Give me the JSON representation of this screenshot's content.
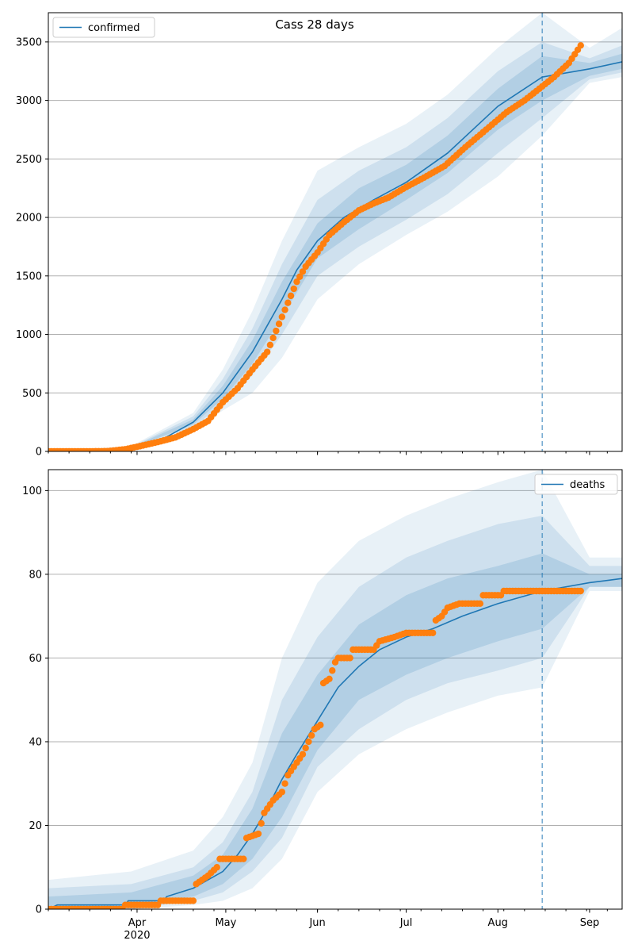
{
  "chart_data": [
    {
      "type": "line",
      "title": "Cass 28 days",
      "legend": {
        "label": "confirmed",
        "placement": "top-left"
      },
      "ylim": [
        0,
        3750
      ],
      "yticks": [
        0,
        500,
        1000,
        1500,
        2000,
        2500,
        3000,
        3500
      ],
      "grid": "y",
      "forecast_start": "2020-08-16",
      "xlim": [
        "2020-03-02",
        "2020-09-12"
      ],
      "model_line": [
        [
          "2020-03-02",
          0
        ],
        [
          "2020-03-20",
          5
        ],
        [
          "2020-03-30",
          30
        ],
        [
          "2020-04-10",
          110
        ],
        [
          "2020-04-20",
          250
        ],
        [
          "2020-04-30",
          500
        ],
        [
          "2020-05-10",
          850
        ],
        [
          "2020-05-20",
          1300
        ],
        [
          "2020-05-25",
          1550
        ],
        [
          "2020-06-01",
          1800
        ],
        [
          "2020-06-10",
          2000
        ],
        [
          "2020-06-20",
          2150
        ],
        [
          "2020-07-01",
          2300
        ],
        [
          "2020-07-15",
          2550
        ],
        [
          "2020-08-01",
          2950
        ],
        [
          "2020-08-16",
          3200
        ],
        [
          "2020-09-01",
          3270
        ],
        [
          "2020-09-12",
          3330
        ]
      ],
      "bands": [
        {
          "opacity": 0.1,
          "points": [
            [
              "2020-03-02",
              0,
              0
            ],
            [
              "2020-03-30",
              20,
              45
            ],
            [
              "2020-04-20",
              180,
              330
            ],
            [
              "2020-04-30",
              350,
              700
            ],
            [
              "2020-05-10",
              500,
              1200
            ],
            [
              "2020-05-20",
              800,
              1800
            ],
            [
              "2020-06-01",
              1300,
              2400
            ],
            [
              "2020-06-15",
              1600,
              2600
            ],
            [
              "2020-07-01",
              1850,
              2800
            ],
            [
              "2020-07-15",
              2050,
              3050
            ],
            [
              "2020-08-01",
              2350,
              3450
            ],
            [
              "2020-08-16",
              2700,
              3750
            ],
            [
              "2020-09-01",
              3150,
              3450
            ],
            [
              "2020-09-12",
              3200,
              3620
            ]
          ]
        },
        {
          "opacity": 0.13,
          "points": [
            [
              "2020-03-02",
              0,
              0
            ],
            [
              "2020-03-30",
              24,
              38
            ],
            [
              "2020-04-20",
              210,
              300
            ],
            [
              "2020-04-30",
              400,
              620
            ],
            [
              "2020-05-10",
              650,
              1050
            ],
            [
              "2020-05-20",
              1000,
              1600
            ],
            [
              "2020-06-01",
              1500,
              2150
            ],
            [
              "2020-06-15",
              1750,
              2400
            ],
            [
              "2020-07-01",
              1980,
              2600
            ],
            [
              "2020-07-15",
              2200,
              2850
            ],
            [
              "2020-08-01",
              2550,
              3250
            ],
            [
              "2020-08-16",
              2850,
              3500
            ],
            [
              "2020-09-01",
              3180,
              3360
            ],
            [
              "2020-09-12",
              3240,
              3470
            ]
          ]
        },
        {
          "opacity": 0.16,
          "points": [
            [
              "2020-03-02",
              0,
              0
            ],
            [
              "2020-03-30",
              27,
              34
            ],
            [
              "2020-04-20",
              230,
              275
            ],
            [
              "2020-04-30",
              450,
              560
            ],
            [
              "2020-05-10",
              750,
              950
            ],
            [
              "2020-05-20",
              1150,
              1450
            ],
            [
              "2020-06-01",
              1650,
              1950
            ],
            [
              "2020-06-15",
              1900,
              2250
            ],
            [
              "2020-07-01",
              2150,
              2450
            ],
            [
              "2020-07-15",
              2380,
              2700
            ],
            [
              "2020-08-01",
              2750,
              3100
            ],
            [
              "2020-08-16",
              3000,
              3380
            ],
            [
              "2020-09-01",
              3210,
              3320
            ],
            [
              "2020-09-12",
              3270,
              3400
            ]
          ]
        }
      ],
      "observed": [
        [
          "2020-03-02",
          0
        ],
        [
          "2020-03-14",
          0
        ],
        [
          "2020-03-22",
          2
        ],
        [
          "2020-03-28",
          18
        ],
        [
          "2020-04-02",
          45
        ],
        [
          "2020-04-08",
          80
        ],
        [
          "2020-04-14",
          120
        ],
        [
          "2020-04-20",
          190
        ],
        [
          "2020-04-25",
          260
        ],
        [
          "2020-04-30",
          420
        ],
        [
          "2020-05-05",
          540
        ],
        [
          "2020-05-10",
          700
        ],
        [
          "2020-05-15",
          850
        ],
        [
          "2020-05-20",
          1150
        ],
        [
          "2020-05-25",
          1450
        ],
        [
          "2020-05-28",
          1580
        ],
        [
          "2020-06-01",
          1700
        ],
        [
          "2020-06-05",
          1850
        ],
        [
          "2020-06-10",
          1960
        ],
        [
          "2020-06-15",
          2060
        ],
        [
          "2020-06-20",
          2120
        ],
        [
          "2020-06-25",
          2170
        ],
        [
          "2020-07-01",
          2260
        ],
        [
          "2020-07-07",
          2340
        ],
        [
          "2020-07-14",
          2440
        ],
        [
          "2020-07-21",
          2600
        ],
        [
          "2020-07-28",
          2750
        ],
        [
          "2020-08-04",
          2900
        ],
        [
          "2020-08-10",
          3000
        ],
        [
          "2020-08-16",
          3120
        ],
        [
          "2020-08-20",
          3200
        ],
        [
          "2020-08-25",
          3320
        ],
        [
          "2020-08-29",
          3470
        ]
      ]
    },
    {
      "type": "line",
      "legend": {
        "label": "deaths",
        "placement": "top-right"
      },
      "ylim": [
        0,
        105
      ],
      "yticks": [
        0,
        20,
        40,
        60,
        80,
        100
      ],
      "grid": "y",
      "forecast_start": "2020-08-16",
      "xlim": [
        "2020-03-02",
        "2020-09-12"
      ],
      "xticks": [
        {
          "date": "2020-04-01",
          "label": "Apr",
          "sublabel": "2020"
        },
        {
          "date": "2020-05-01",
          "label": "May"
        },
        {
          "date": "2020-06-01",
          "label": "Jun"
        },
        {
          "date": "2020-07-01",
          "label": "Jul"
        },
        {
          "date": "2020-08-01",
          "label": "Aug"
        },
        {
          "date": "2020-09-01",
          "label": "Sep"
        }
      ],
      "model_line": [
        [
          "2020-03-02",
          0
        ],
        [
          "2020-03-05",
          1
        ],
        [
          "2020-03-28",
          1
        ],
        [
          "2020-03-29",
          2
        ],
        [
          "2020-04-10",
          2
        ],
        [
          "2020-04-11",
          3
        ],
        [
          "2020-04-20",
          5
        ],
        [
          "2020-04-30",
          9
        ],
        [
          "2020-05-05",
          13
        ],
        [
          "2020-05-10",
          18
        ],
        [
          "2020-05-15",
          24
        ],
        [
          "2020-05-20",
          31
        ],
        [
          "2020-05-25",
          37
        ],
        [
          "2020-06-01",
          45
        ],
        [
          "2020-06-08",
          53
        ],
        [
          "2020-06-15",
          58
        ],
        [
          "2020-06-22",
          62
        ],
        [
          "2020-07-01",
          65
        ],
        [
          "2020-07-10",
          67
        ],
        [
          "2020-07-20",
          70
        ],
        [
          "2020-08-01",
          73
        ],
        [
          "2020-08-16",
          76
        ],
        [
          "2020-09-01",
          78
        ],
        [
          "2020-09-12",
          79
        ]
      ],
      "bands": [
        {
          "opacity": 0.1,
          "points": [
            [
              "2020-03-02",
              0,
              7
            ],
            [
              "2020-03-30",
              0,
              9
            ],
            [
              "2020-04-20",
              1,
              14
            ],
            [
              "2020-04-30",
              2,
              22
            ],
            [
              "2020-05-10",
              5,
              35
            ],
            [
              "2020-05-20",
              12,
              60
            ],
            [
              "2020-06-01",
              28,
              78
            ],
            [
              "2020-06-15",
              37,
              88
            ],
            [
              "2020-07-01",
              43,
              94
            ],
            [
              "2020-07-15",
              47,
              98
            ],
            [
              "2020-08-01",
              51,
              102
            ],
            [
              "2020-08-16",
              53,
              105
            ],
            [
              "2020-09-01",
              76,
              84
            ],
            [
              "2020-09-12",
              76,
              84
            ]
          ]
        },
        {
          "opacity": 0.13,
          "points": [
            [
              "2020-03-02",
              0,
              5
            ],
            [
              "2020-03-30",
              0,
              6
            ],
            [
              "2020-04-20",
              2,
              10
            ],
            [
              "2020-04-30",
              4,
              16
            ],
            [
              "2020-05-10",
              9,
              28
            ],
            [
              "2020-05-20",
              17,
              50
            ],
            [
              "2020-06-01",
              34,
              65
            ],
            [
              "2020-06-15",
              43,
              77
            ],
            [
              "2020-07-01",
              50,
              84
            ],
            [
              "2020-07-15",
              54,
              88
            ],
            [
              "2020-08-01",
              57,
              92
            ],
            [
              "2020-08-16",
              60,
              94
            ],
            [
              "2020-09-01",
              77,
              82
            ],
            [
              "2020-09-12",
              77,
              82
            ]
          ]
        },
        {
          "opacity": 0.16,
          "points": [
            [
              "2020-03-02",
              0,
              3
            ],
            [
              "2020-03-30",
              1,
              4
            ],
            [
              "2020-04-20",
              3,
              8
            ],
            [
              "2020-04-30",
              6,
              13
            ],
            [
              "2020-05-10",
              12,
              24
            ],
            [
              "2020-05-20",
              22,
              42
            ],
            [
              "2020-06-01",
              38,
              56
            ],
            [
              "2020-06-15",
              50,
              68
            ],
            [
              "2020-07-01",
              56,
              75
            ],
            [
              "2020-07-15",
              60,
              79
            ],
            [
              "2020-08-01",
              64,
              82
            ],
            [
              "2020-08-16",
              67,
              85
            ],
            [
              "2020-09-01",
              77,
              80
            ],
            [
              "2020-09-12",
              77,
              80
            ]
          ]
        }
      ],
      "observed": [
        [
          "2020-03-02",
          0
        ],
        [
          "2020-03-27",
          0
        ],
        [
          "2020-03-28",
          1
        ],
        [
          "2020-04-08",
          1
        ],
        [
          "2020-04-09",
          2
        ],
        [
          "2020-04-20",
          2
        ],
        [
          "2020-04-21",
          6
        ],
        [
          "2020-04-25",
          8
        ],
        [
          "2020-04-28",
          10
        ],
        [
          "2020-04-29",
          12
        ],
        [
          "2020-05-07",
          12
        ],
        [
          "2020-05-08",
          17
        ],
        [
          "2020-05-12",
          18
        ],
        [
          "2020-05-14",
          23
        ],
        [
          "2020-05-17",
          26
        ],
        [
          "2020-05-20",
          28
        ],
        [
          "2020-05-22",
          32
        ],
        [
          "2020-05-24",
          34
        ],
        [
          "2020-05-27",
          37
        ],
        [
          "2020-05-29",
          40
        ],
        [
          "2020-05-31",
          43
        ],
        [
          "2020-06-02",
          44
        ],
        [
          "2020-06-03",
          54
        ],
        [
          "2020-06-05",
          55
        ],
        [
          "2020-06-07",
          59
        ],
        [
          "2020-06-08",
          60
        ],
        [
          "2020-06-12",
          60
        ],
        [
          "2020-06-13",
          62
        ],
        [
          "2020-06-20",
          62
        ],
        [
          "2020-06-22",
          64
        ],
        [
          "2020-06-27",
          65
        ],
        [
          "2020-07-01",
          66
        ],
        [
          "2020-07-10",
          66
        ],
        [
          "2020-07-11",
          69
        ],
        [
          "2020-07-13",
          70
        ],
        [
          "2020-07-15",
          72
        ],
        [
          "2020-07-19",
          73
        ],
        [
          "2020-07-26",
          73
        ],
        [
          "2020-07-27",
          75
        ],
        [
          "2020-08-02",
          75
        ],
        [
          "2020-08-03",
          76
        ],
        [
          "2020-08-29",
          76
        ]
      ]
    }
  ]
}
